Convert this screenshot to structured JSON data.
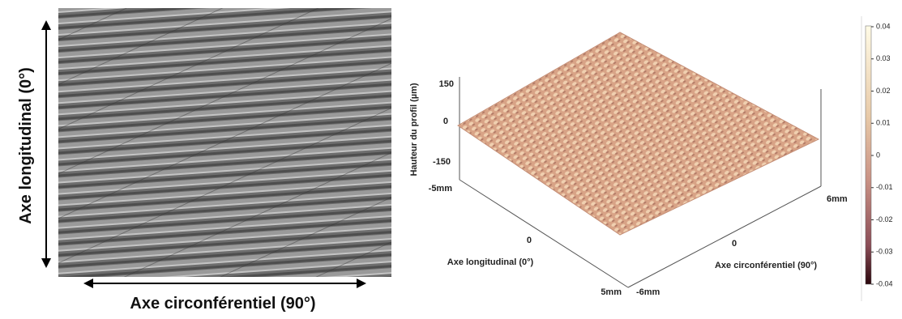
{
  "left_panel": {
    "y_label": "Axe longitudinal (0°)",
    "x_label": "Axe circonférentiel (90°)"
  },
  "right_panel": {
    "z_label": "Hauteur du profil (µm)",
    "z_ticks": [
      "150",
      "0",
      "-150"
    ],
    "longitudinal_ticks": [
      "-5mm",
      "0",
      "5mm"
    ],
    "longitudinal_label": "Axe longitudinal (0°)",
    "circumferential_ticks": [
      "-6mm",
      "0",
      "6mm"
    ],
    "circumferential_label": "Axe circonférentiel (90°)",
    "colorbar_ticks": [
      "0.04",
      "0.03",
      "0.02",
      "0.01",
      "0",
      "-0.01",
      "-0.02",
      "-0.03",
      "-0.04"
    ]
  }
}
